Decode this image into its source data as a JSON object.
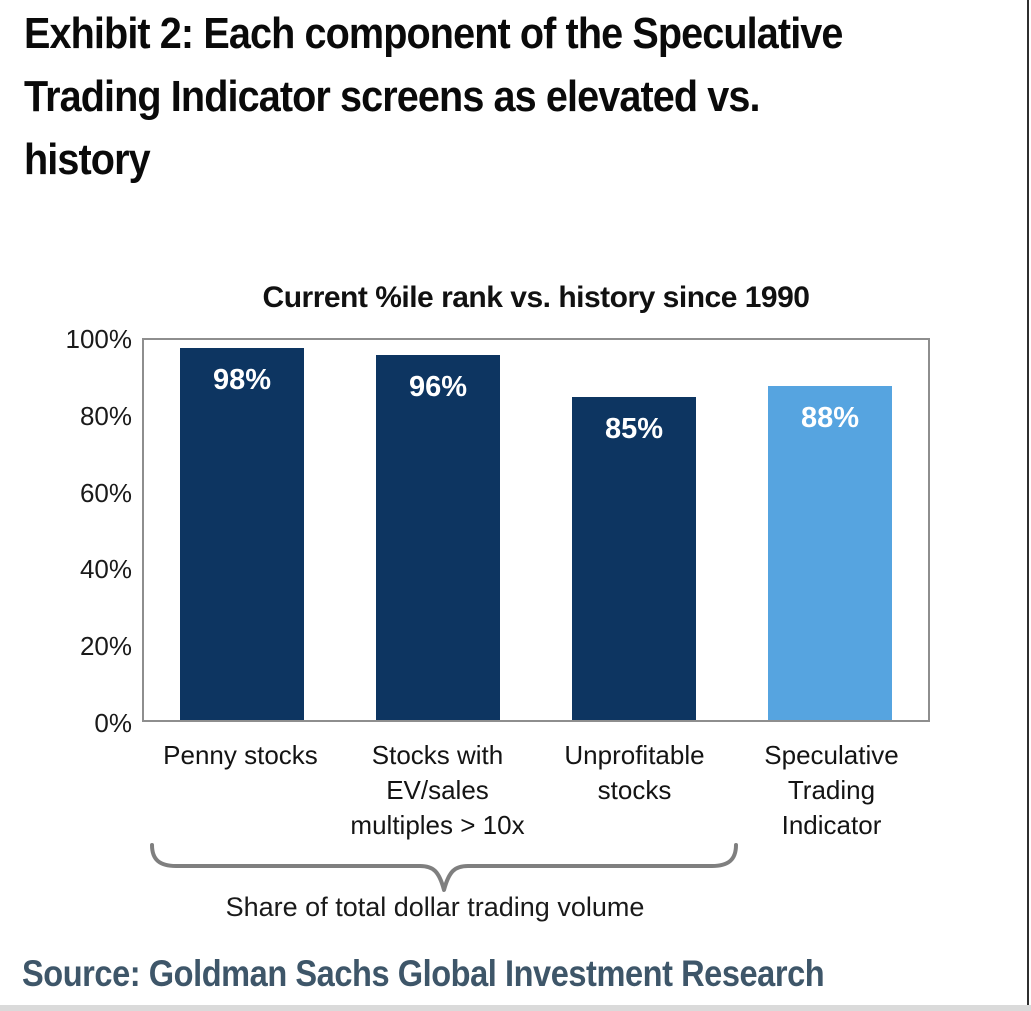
{
  "heading": {
    "full": "Exhibit 2: Each component of the Speculative Trading Indicator screens as elevated vs. history",
    "lines": [
      "Exhibit 2: Each component of the Speculative",
      "Trading Indicator screens as elevated vs.",
      "history"
    ]
  },
  "chart_data": {
    "type": "bar",
    "title": "Current %ile rank vs. history since 1990",
    "categories": [
      "Penny stocks",
      "Stocks with EV/sales multiples > 10x",
      "Unprofitable stocks",
      "Speculative Trading Indicator"
    ],
    "category_lines": [
      [
        "Penny stocks"
      ],
      [
        "Stocks with",
        "EV/sales",
        "multiples > 10x"
      ],
      [
        "Unprofitable",
        "stocks"
      ],
      [
        "Speculative",
        "Trading",
        "Indicator"
      ]
    ],
    "values": [
      98,
      96,
      85,
      88
    ],
    "value_labels": [
      "98%",
      "96%",
      "85%",
      "88%"
    ],
    "bar_colors": [
      "#0d3561",
      "#0d3561",
      "#0d3561",
      "#56a4e0"
    ],
    "xlabel": "",
    "ylabel": "",
    "ylim": [
      0,
      100
    ],
    "yticks": [
      "100%",
      "80%",
      "60%",
      "40%",
      "20%",
      "0%"
    ],
    "grid": false,
    "legend": false,
    "annotation": "Share of total dollar trading volume",
    "annotation_spans_categories": [
      0,
      2
    ]
  },
  "source": {
    "text": "Source: Goldman Sachs Global Investment Research"
  },
  "colors": {
    "navy": "#0d3561",
    "light_blue": "#56a4e0",
    "plot_border": "#8e8e8e",
    "bracket": "#7f7f7f",
    "source_text": "#3e5669",
    "heading_text": "#0a0a0a"
  }
}
